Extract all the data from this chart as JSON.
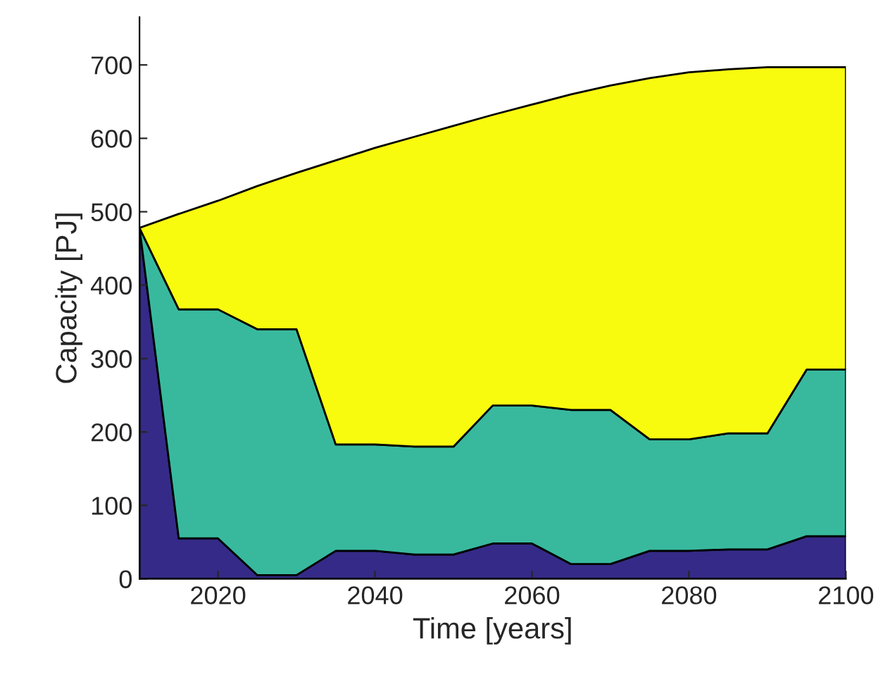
{
  "chart_data": {
    "type": "area",
    "stacked": true,
    "xlabel": "Time [years]",
    "ylabel": "Capacity [PJ]",
    "x": [
      2010,
      2015,
      2020,
      2025,
      2030,
      2035,
      2040,
      2045,
      2050,
      2055,
      2060,
      2065,
      2070,
      2075,
      2080,
      2085,
      2090,
      2095,
      2100
    ],
    "series": [
      {
        "color": "#352a87",
        "values": [
          478,
          55,
          55,
          5,
          5,
          38,
          38,
          33,
          33,
          48,
          48,
          20,
          20,
          38,
          38,
          40,
          40,
          58,
          58
        ]
      },
      {
        "color": "#38b99e",
        "values": [
          0,
          312,
          312,
          335,
          335,
          145,
          145,
          147,
          147,
          188,
          188,
          210,
          210,
          152,
          152,
          158,
          158,
          227,
          227
        ]
      },
      {
        "color": "#f9fb0e",
        "values": [
          0,
          130,
          148,
          195,
          213,
          387,
          404,
          422,
          437,
          396,
          410,
          430,
          442,
          492,
          500,
          496,
          499,
          412,
          412
        ]
      }
    ],
    "xlim": [
      2010,
      2100
    ],
    "xticks": [
      2020,
      2040,
      2060,
      2080,
      2100
    ],
    "ylim": [
      0,
      765
    ],
    "yticks": [
      0,
      100,
      200,
      300,
      400,
      500,
      600,
      700
    ],
    "grid": false,
    "legend": false
  }
}
